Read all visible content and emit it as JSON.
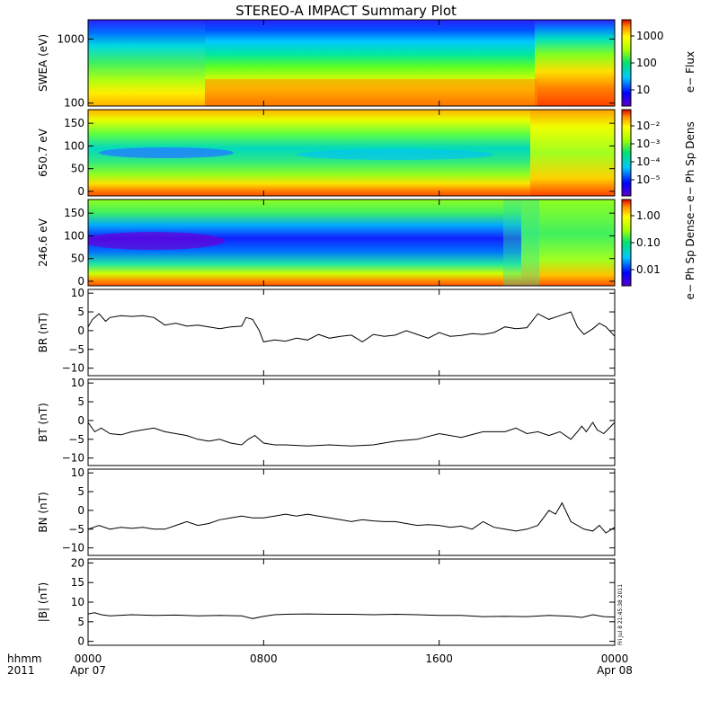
{
  "title": "STEREO-A IMPACT Summary Plot",
  "time_axis": {
    "left_label_top": "hhmm",
    "left_label_bottom": "2011",
    "ticks": [
      {
        "hour": 0,
        "label": "0000",
        "sub": "Apr 07"
      },
      {
        "hour": 8,
        "label": "0800",
        "sub": ""
      },
      {
        "hour": 16,
        "label": "1600",
        "sub": ""
      },
      {
        "hour": 24,
        "label": "0000",
        "sub": "Apr 08"
      }
    ],
    "range_hours": [
      0,
      24
    ]
  },
  "stamp": "Fri Jul 8 21:45:38 2011",
  "chart_data": [
    {
      "type": "heatmap",
      "ylabel": "SWEA (eV)",
      "yscale": "log",
      "ylim": [
        90,
        2000
      ],
      "y_ticks": [
        "1000",
        "100"
      ],
      "colorbar": {
        "label": "e− Flux",
        "scale": "log",
        "ticks": [
          "1000",
          "100",
          "10"
        ]
      }
    },
    {
      "type": "heatmap",
      "ylabel": "650.7 eV",
      "ylim": [
        -10,
        180
      ],
      "y_ticks": [
        "150",
        "100",
        "50",
        "0"
      ],
      "low_band_center_deg": 95,
      "colorbar": {
        "label": "e− Ph Sp Dens",
        "scale": "log",
        "ticks": [
          "10⁻²",
          "10⁻³",
          "10⁻⁴",
          "10⁻⁵"
        ]
      }
    },
    {
      "type": "heatmap",
      "ylabel": "246.6 eV",
      "ylim": [
        -10,
        180
      ],
      "y_ticks": [
        "150",
        "100",
        "50",
        "0"
      ],
      "low_band_center_deg": 95,
      "colorbar": {
        "label": "e− Ph Sp Dense−",
        "scale": "log",
        "ticks": [
          "1.00",
          "0.10",
          "0.01"
        ]
      }
    },
    {
      "type": "line",
      "ylabel": "BR (nT)",
      "ylim": [
        -12,
        11
      ],
      "y_ticks": [
        "10",
        "5",
        "0",
        "−5",
        "−10"
      ],
      "x": [
        0,
        0.2,
        0.5,
        0.8,
        1,
        1.5,
        2,
        2.5,
        3,
        3.5,
        4,
        4.5,
        5,
        5.5,
        6,
        6.5,
        7,
        7.2,
        7.5,
        7.8,
        8,
        8.5,
        9,
        9.5,
        10,
        10.5,
        11,
        11.5,
        12,
        12.5,
        13,
        13.5,
        14,
        14.5,
        15,
        15.5,
        16,
        16.5,
        17,
        17.5,
        18,
        18.5,
        19,
        19.5,
        20,
        20.5,
        21,
        21.5,
        22,
        22.3,
        22.6,
        23,
        23.3,
        23.6,
        24
      ],
      "y": [
        1,
        3,
        4.5,
        2.5,
        3.5,
        4,
        3.8,
        4,
        3.5,
        1.5,
        2,
        1.2,
        1.5,
        1,
        0.5,
        1,
        1.2,
        3.5,
        3,
        0,
        -3,
        -2.5,
        -2.8,
        -2,
        -2.5,
        -1,
        -2,
        -1.5,
        -1.2,
        -3,
        -1,
        -1.5,
        -1.2,
        0,
        -1,
        -2,
        -0.5,
        -1.5,
        -1.3,
        -0.8,
        -1,
        -0.5,
        1,
        0.5,
        0.8,
        4.5,
        3,
        4,
        5,
        1,
        -1,
        0.5,
        2,
        1,
        -1.5
      ]
    },
    {
      "type": "line",
      "ylabel": "BT (nT)",
      "ylim": [
        -12,
        11
      ],
      "y_ticks": [
        "10",
        "5",
        "0",
        "−5",
        "−10"
      ],
      "x": [
        0,
        0.3,
        0.6,
        1,
        1.5,
        2,
        2.5,
        3,
        3.5,
        4,
        4.5,
        5,
        5.5,
        6,
        6.5,
        7,
        7.3,
        7.6,
        8,
        8.5,
        9,
        10,
        11,
        12,
        13,
        14,
        15,
        16,
        17,
        18,
        19,
        19.5,
        20,
        20.5,
        21,
        21.5,
        22,
        22.3,
        22.5,
        22.7,
        23,
        23.2,
        23.5,
        24
      ],
      "y": [
        -0.5,
        -3,
        -2,
        -3.5,
        -3.8,
        -3,
        -2.5,
        -2,
        -3,
        -3.5,
        -4,
        -5,
        -5.5,
        -5,
        -6,
        -6.5,
        -5,
        -4,
        -6,
        -6.5,
        -6.5,
        -6.8,
        -6.5,
        -6.8,
        -6.5,
        -5.5,
        -5,
        -3.5,
        -4.5,
        -3,
        -3,
        -2,
        -3.5,
        -3,
        -4,
        -3,
        -5,
        -3,
        -1.5,
        -3,
        -0.5,
        -2.5,
        -3.5,
        -0.5
      ]
    },
    {
      "type": "line",
      "ylabel": "BN (nT)",
      "ylim": [
        -12,
        11
      ],
      "y_ticks": [
        "10",
        "5",
        "0",
        "−5",
        "−10"
      ],
      "x": [
        0,
        0.5,
        1,
        1.5,
        2,
        2.5,
        3,
        3.5,
        4,
        4.5,
        5,
        5.5,
        6,
        6.5,
        7,
        7.5,
        8,
        8.5,
        9,
        9.5,
        10,
        10.5,
        11,
        11.5,
        12,
        12.5,
        13,
        13.5,
        14,
        14.5,
        15,
        15.5,
        16,
        16.5,
        17,
        17.5,
        18,
        18.5,
        19,
        19.5,
        20,
        20.5,
        21,
        21.3,
        21.6,
        22,
        22.3,
        22.6,
        23,
        23.3,
        23.6,
        24
      ],
      "y": [
        -5,
        -4,
        -5,
        -4.5,
        -4.8,
        -4.5,
        -5,
        -5,
        -4,
        -3,
        -4,
        -3.5,
        -2.5,
        -2,
        -1.5,
        -2,
        -2,
        -1.5,
        -1,
        -1.5,
        -1,
        -1.5,
        -2,
        -2.5,
        -3,
        -2.5,
        -2.8,
        -3,
        -3,
        -3.5,
        -4,
        -3.8,
        -4,
        -4.5,
        -4.2,
        -5,
        -3,
        -4.5,
        -5,
        -5.5,
        -5,
        -4,
        0,
        -1,
        2,
        -3,
        -4,
        -5,
        -5.5,
        -4,
        -6,
        -4.5
      ]
    },
    {
      "type": "line",
      "ylabel": "|B| (nT)",
      "ylim": [
        -1,
        21
      ],
      "y_ticks": [
        "20",
        "15",
        "10",
        "5",
        "0"
      ],
      "x": [
        0,
        0.3,
        0.6,
        1,
        2,
        3,
        4,
        5,
        6,
        7,
        7.5,
        8,
        8.5,
        9,
        10,
        11,
        12,
        13,
        14,
        15,
        16,
        17,
        18,
        19,
        20,
        21,
        21.5,
        22,
        22.5,
        23,
        23.5,
        24
      ],
      "y": [
        7,
        7.3,
        6.8,
        6.5,
        6.8,
        6.6,
        6.7,
        6.5,
        6.6,
        6.5,
        5.8,
        6.4,
        6.8,
        6.9,
        7,
        6.9,
        6.9,
        6.8,
        6.9,
        6.8,
        6.6,
        6.6,
        6.3,
        6.4,
        6.3,
        6.6,
        6.5,
        6.4,
        6.1,
        6.8,
        6.3,
        6.2
      ]
    }
  ]
}
